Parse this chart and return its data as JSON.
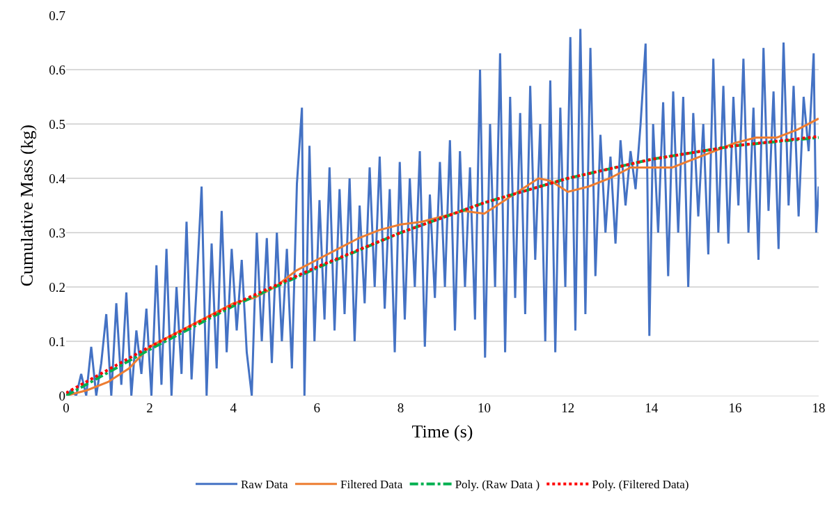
{
  "chart_data": {
    "type": "line",
    "xlabel": "Time (s)",
    "ylabel": "Cumulative Mass (kg)",
    "xlim": [
      0,
      18
    ],
    "xticks": [
      0,
      2,
      4,
      6,
      8,
      10,
      12,
      14,
      16,
      18
    ],
    "ylim": [
      0,
      0.7
    ],
    "yticks": [
      0,
      0.1,
      0.2,
      0.3,
      0.4,
      0.5,
      0.6,
      0.7
    ],
    "grid": "y",
    "legend": "bottom",
    "marker": "none",
    "series": [
      {
        "name": "Raw Data",
        "color": "#4472c4",
        "line_style": "solid",
        "x": [
          0,
          0.12,
          0.24,
          0.36,
          0.48,
          0.6,
          0.72,
          0.84,
          0.96,
          1.08,
          1.2,
          1.32,
          1.44,
          1.56,
          1.68,
          1.8,
          1.92,
          2.04,
          2.16,
          2.28,
          2.4,
          2.52,
          2.64,
          2.76,
          2.88,
          3.0,
          3.12,
          3.24,
          3.36,
          3.48,
          3.6,
          3.72,
          3.84,
          3.96,
          4.08,
          4.2,
          4.32,
          4.44,
          4.56,
          4.68,
          4.8,
          4.92,
          5.04,
          5.16,
          5.28,
          5.4,
          5.52,
          5.64,
          5.7,
          5.82,
          5.94,
          6.06,
          6.18,
          6.3,
          6.42,
          6.54,
          6.66,
          6.78,
          6.9,
          7.02,
          7.14,
          7.26,
          7.38,
          7.5,
          7.62,
          7.74,
          7.86,
          7.98,
          8.1,
          8.22,
          8.34,
          8.46,
          8.58,
          8.7,
          8.82,
          8.94,
          9.06,
          9.18,
          9.3,
          9.42,
          9.54,
          9.66,
          9.78,
          9.9,
          10.02,
          10.14,
          10.26,
          10.38,
          10.5,
          10.62,
          10.74,
          10.86,
          10.98,
          11.1,
          11.22,
          11.34,
          11.46,
          11.58,
          11.7,
          11.82,
          11.94,
          12.06,
          12.18,
          12.3,
          12.42,
          12.54,
          12.66,
          12.78,
          12.9,
          13.02,
          13.14,
          13.26,
          13.38,
          13.5,
          13.62,
          13.74,
          13.86,
          13.95,
          14.04,
          14.16,
          14.28,
          14.4,
          14.52,
          14.64,
          14.76,
          14.88,
          15.0,
          15.12,
          15.24,
          15.36,
          15.48,
          15.6,
          15.72,
          15.84,
          15.96,
          16.08,
          16.2,
          16.32,
          16.44,
          16.56,
          16.68,
          16.8,
          16.92,
          17.04,
          17.16,
          17.28,
          17.4,
          17.52,
          17.64,
          17.76,
          17.88,
          17.94,
          18.0
        ],
        "values": [
          0,
          0.01,
          0.0,
          0.04,
          0.0,
          0.09,
          0.0,
          0.06,
          0.15,
          0.0,
          0.17,
          0.02,
          0.19,
          0.0,
          0.12,
          0.04,
          0.16,
          0.0,
          0.24,
          0.02,
          0.27,
          0.0,
          0.2,
          0.04,
          0.32,
          0.03,
          0.2,
          0.385,
          0.0,
          0.28,
          0.05,
          0.34,
          0.08,
          0.27,
          0.12,
          0.25,
          0.08,
          0.0,
          0.3,
          0.1,
          0.29,
          0.06,
          0.3,
          0.1,
          0.27,
          0.05,
          0.39,
          0.53,
          0.0,
          0.46,
          0.1,
          0.36,
          0.14,
          0.42,
          0.12,
          0.38,
          0.15,
          0.4,
          0.1,
          0.35,
          0.17,
          0.42,
          0.2,
          0.44,
          0.16,
          0.38,
          0.08,
          0.43,
          0.14,
          0.4,
          0.2,
          0.45,
          0.09,
          0.37,
          0.18,
          0.43,
          0.2,
          0.47,
          0.12,
          0.45,
          0.2,
          0.42,
          0.14,
          0.6,
          0.07,
          0.5,
          0.2,
          0.63,
          0.08,
          0.55,
          0.18,
          0.52,
          0.15,
          0.57,
          0.25,
          0.5,
          0.1,
          0.58,
          0.08,
          0.53,
          0.2,
          0.66,
          0.12,
          0.675,
          0.15,
          0.64,
          0.22,
          0.48,
          0.3,
          0.44,
          0.28,
          0.47,
          0.35,
          0.45,
          0.38,
          0.5,
          0.648,
          0.11,
          0.5,
          0.3,
          0.54,
          0.22,
          0.56,
          0.3,
          0.55,
          0.2,
          0.52,
          0.33,
          0.5,
          0.26,
          0.62,
          0.3,
          0.57,
          0.28,
          0.55,
          0.35,
          0.62,
          0.3,
          0.53,
          0.25,
          0.64,
          0.34,
          0.56,
          0.27,
          0.65,
          0.35,
          0.57,
          0.33,
          0.55,
          0.45,
          0.63,
          0.3,
          0.385
        ]
      },
      {
        "name": "Filtered Data",
        "color": "#ed7d31",
        "line_style": "solid",
        "x": [
          0,
          0.5,
          1,
          1.5,
          2,
          2.5,
          3,
          3.5,
          4,
          4.5,
          5,
          5.5,
          6,
          6.5,
          7,
          7.5,
          8,
          8.5,
          9,
          9.5,
          10,
          10.5,
          11,
          11.3,
          11.6,
          12,
          12.5,
          13,
          13.5,
          14,
          14.5,
          15,
          15.5,
          16,
          16.5,
          17,
          17.5,
          18
        ],
        "values": [
          0,
          0.01,
          0.025,
          0.05,
          0.09,
          0.11,
          0.13,
          0.15,
          0.17,
          0.18,
          0.2,
          0.23,
          0.25,
          0.27,
          0.29,
          0.305,
          0.315,
          0.32,
          0.33,
          0.34,
          0.335,
          0.36,
          0.385,
          0.4,
          0.395,
          0.375,
          0.385,
          0.4,
          0.42,
          0.42,
          0.42,
          0.435,
          0.45,
          0.465,
          0.475,
          0.475,
          0.49,
          0.51
        ]
      },
      {
        "name": "Poly. (Raw Data )",
        "color": "#00b050",
        "line_style": "dashdot",
        "x": [
          0,
          2,
          4,
          6,
          8,
          10,
          12,
          14,
          16,
          18
        ],
        "values": [
          0,
          0.085,
          0.165,
          0.235,
          0.3,
          0.355,
          0.4,
          0.435,
          0.46,
          0.475
        ]
      },
      {
        "name": "Poly. (Filtered Data)",
        "color": "#ff0000",
        "line_style": "dotted",
        "x": [
          0,
          2,
          4,
          6,
          8,
          10,
          12,
          14,
          16,
          18
        ],
        "values": [
          0.005,
          0.09,
          0.168,
          0.237,
          0.3,
          0.355,
          0.4,
          0.435,
          0.46,
          0.477
        ]
      }
    ]
  }
}
